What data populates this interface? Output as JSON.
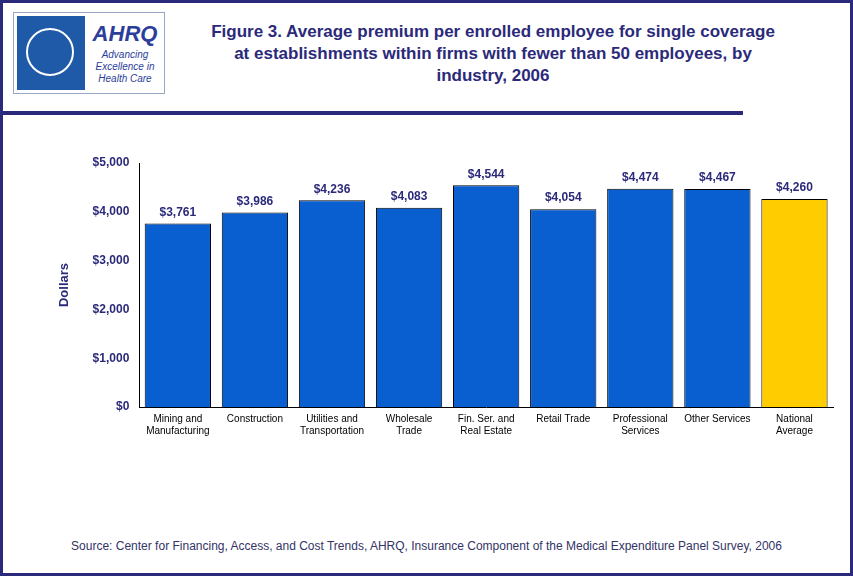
{
  "logo": {
    "name": "AHRQ",
    "tagline": "Advancing Excellence in Health Care"
  },
  "chart_data": {
    "type": "bar",
    "title": "Figure 3. Average premium per enrolled employee for single coverage at establishments within firms with fewer than 50 employees, by industry, 2006",
    "ylabel": "Dollars",
    "categories": [
      "Mining and Manufacturing",
      "Construction",
      "Utilities and Transportation",
      "Wholesale Trade",
      "Fin. Ser. and Real Estate",
      "Retail Trade",
      "Professional Services",
      "Other Services",
      "National Average"
    ],
    "values": [
      3761,
      3986,
      4236,
      4083,
      4544,
      4054,
      4474,
      4467,
      4260
    ],
    "value_labels": [
      "$3,761",
      "$3,986",
      "$4,236",
      "$4,083",
      "$4,544",
      "$4,054",
      "$4,474",
      "$4,467",
      "$4,260"
    ],
    "colors": [
      "#0a5fd0",
      "#0a5fd0",
      "#0a5fd0",
      "#0a5fd0",
      "#0a5fd0",
      "#0a5fd0",
      "#0a5fd0",
      "#0a5fd0",
      "#ffcc00"
    ],
    "ylim": [
      0,
      5000
    ],
    "yticks": [
      {
        "value": 0,
        "label": "$0"
      },
      {
        "value": 1000,
        "label": "$1,000"
      },
      {
        "value": 2000,
        "label": "$2,000"
      },
      {
        "value": 3000,
        "label": "$3,000"
      },
      {
        "value": 4000,
        "label": "$4,000"
      },
      {
        "value": 5000,
        "label": "$5,000"
      }
    ],
    "grid": false,
    "data_labels": true,
    "source": "Source: Center for Financing, Access, and Cost Trends, AHRQ, Insurance Component of the Medical Expenditure Panel Survey, 2006"
  }
}
